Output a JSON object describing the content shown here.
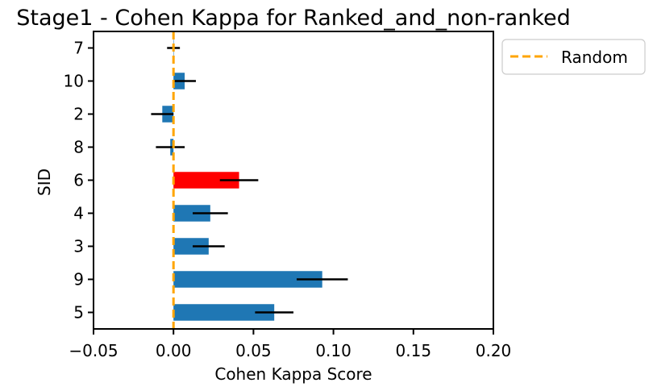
{
  "chart_data": {
    "type": "bar",
    "orientation": "horizontal",
    "title": "Stage1 - Cohen Kappa for Ranked_and_non-ranked",
    "xlabel": "Cohen Kappa Score",
    "ylabel": "SID",
    "xlim": [
      -0.05,
      0.2
    ],
    "xticks": [
      -0.05,
      0.0,
      0.05,
      0.1,
      0.15,
      0.2
    ],
    "xtick_labels": [
      "−0.05",
      "0.00",
      "0.05",
      "0.10",
      "0.15",
      "0.20"
    ],
    "categories": [
      "5",
      "9",
      "3",
      "4",
      "6",
      "8",
      "2",
      "10",
      "7"
    ],
    "values": [
      0.063,
      0.093,
      0.022,
      0.023,
      0.041,
      -0.002,
      -0.007,
      0.007,
      0.0
    ],
    "errors": [
      0.012,
      0.016,
      0.01,
      0.011,
      0.012,
      0.009,
      0.007,
      0.007,
      0.004
    ],
    "bar_colors": [
      "#1f77b4",
      "#1f77b4",
      "#1f77b4",
      "#1f77b4",
      "#ff0000",
      "#1f77b4",
      "#1f77b4",
      "#1f77b4",
      "#1f77b4"
    ],
    "error_color": "#000000",
    "reference_line": {
      "x": 0.0,
      "label": "Random",
      "color": "#ffa500",
      "style": "dashed"
    },
    "legend": {
      "entries": [
        "Random"
      ],
      "placement": "outside-top-right"
    },
    "grid": false
  }
}
